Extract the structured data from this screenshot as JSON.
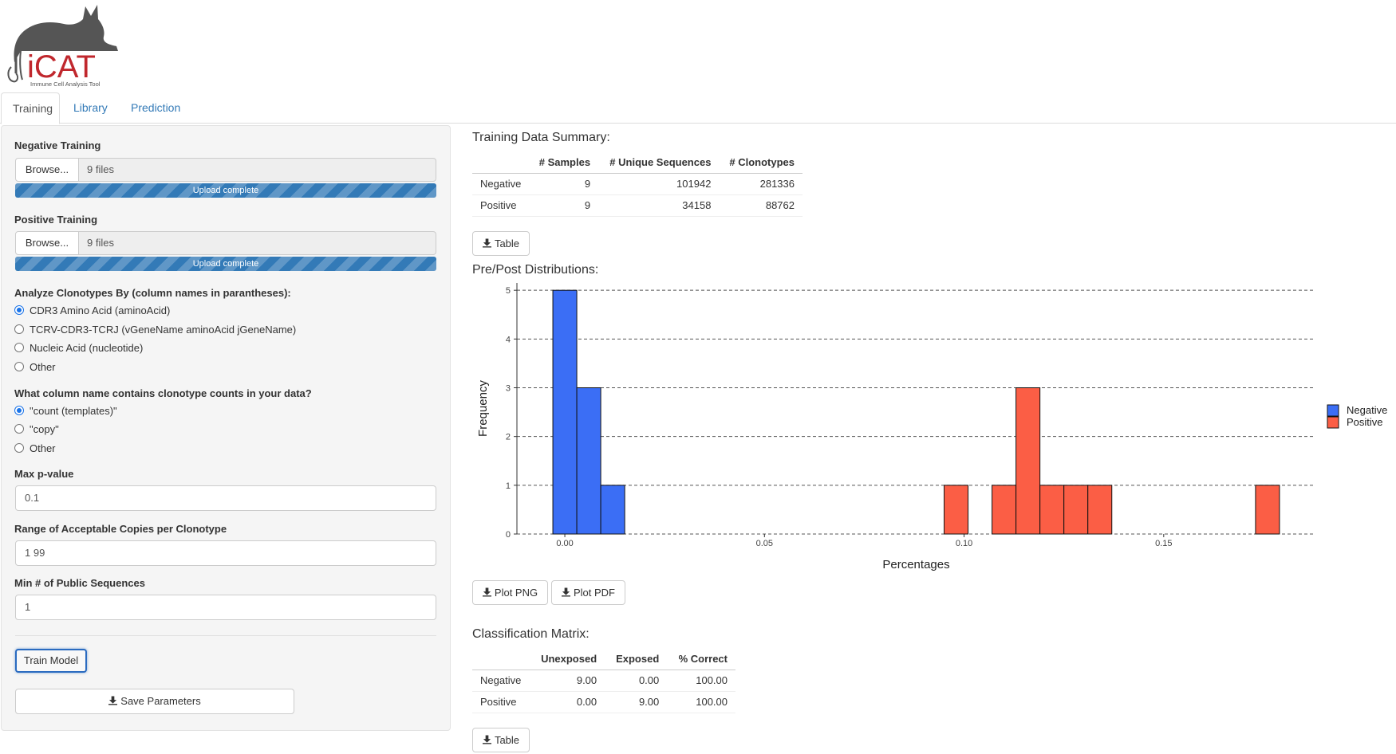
{
  "logo": {
    "text": "iCAT",
    "subtitle": "Immune Cell Analysis Tool"
  },
  "tabs": [
    {
      "label": "Training",
      "active": true
    },
    {
      "label": "Library",
      "active": false
    },
    {
      "label": "Prediction",
      "active": false
    }
  ],
  "sidebar": {
    "negative": {
      "label": "Negative Training",
      "browse": "Browse...",
      "files": "9 files",
      "progress": "Upload complete",
      "progress_value": 1.0
    },
    "positive": {
      "label": "Positive Training",
      "browse": "Browse...",
      "files": "9 files",
      "progress": "Upload complete",
      "progress_value": 1.0
    },
    "analyze": {
      "label": "Analyze Clonotypes By (column names in parantheses):",
      "options": [
        {
          "label": "CDR3 Amino Acid (aminoAcid)",
          "checked": true
        },
        {
          "label": "TCRV-CDR3-TCRJ (vGeneName aminoAcid jGeneName)",
          "checked": false
        },
        {
          "label": "Nucleic Acid (nucleotide)",
          "checked": false
        },
        {
          "label": "Other",
          "checked": false
        }
      ]
    },
    "counts": {
      "label": "What column name contains clonotype counts in your data?",
      "options": [
        {
          "label": "\"count (templates)\"",
          "checked": true
        },
        {
          "label": "\"copy\"",
          "checked": false
        },
        {
          "label": "Other",
          "checked": false
        }
      ]
    },
    "max_p": {
      "label": "Max p-value",
      "value": "0.1"
    },
    "copies": {
      "label": "Range of Acceptable Copies per Clonotype",
      "value": "1 99"
    },
    "public": {
      "label": "Min # of Public Sequences",
      "value": "1"
    },
    "train_button": "Train Model",
    "save_button": "Save Parameters"
  },
  "summary": {
    "title": "Training Data Summary:",
    "headers": [
      "",
      "# Samples",
      "# Unique Sequences",
      "# Clonotypes"
    ],
    "rows": [
      [
        "Negative",
        "9",
        "101942",
        "281336"
      ],
      [
        "Positive",
        "9",
        "34158",
        "88762"
      ]
    ],
    "table_button": "Table"
  },
  "distributions": {
    "title": "Pre/Post Distributions:",
    "plot_png_button": "Plot PNG",
    "plot_pdf_button": "Plot PDF"
  },
  "chart_data": {
    "type": "bar",
    "subtype": "histogram",
    "xlabel": "Percentages",
    "ylabel": "Frequency",
    "xlim": [
      -0.012,
      0.188
    ],
    "ylim": [
      0,
      5.15
    ],
    "xticks": [
      0.0,
      0.05,
      0.1,
      0.15
    ],
    "xtick_labels": [
      "0.00",
      "0.05",
      "0.10",
      "0.15"
    ],
    "yticks": [
      0,
      1,
      2,
      3,
      4,
      5
    ],
    "bin_width": 0.006,
    "grid": "horizontal dashed",
    "legend_position": "right",
    "colors": {
      "Negative": "#3b6ef5",
      "Positive": "#fb5e45"
    },
    "series": [
      {
        "name": "Negative",
        "bins": [
          {
            "x0": -0.003,
            "x1": 0.003,
            "count": 5
          },
          {
            "x0": 0.003,
            "x1": 0.009,
            "count": 3
          },
          {
            "x0": 0.009,
            "x1": 0.015,
            "count": 1
          }
        ]
      },
      {
        "name": "Positive",
        "bins": [
          {
            "x0": 0.095,
            "x1": 0.101,
            "count": 1
          },
          {
            "x0": 0.107,
            "x1": 0.113,
            "count": 1
          },
          {
            "x0": 0.113,
            "x1": 0.119,
            "count": 3
          },
          {
            "x0": 0.119,
            "x1": 0.125,
            "count": 1
          },
          {
            "x0": 0.125,
            "x1": 0.131,
            "count": 1
          },
          {
            "x0": 0.131,
            "x1": 0.137,
            "count": 1
          },
          {
            "x0": 0.173,
            "x1": 0.179,
            "count": 1
          }
        ]
      }
    ]
  },
  "classification": {
    "title": "Classification Matrix:",
    "headers": [
      "",
      "Unexposed",
      "Exposed",
      "% Correct"
    ],
    "rows": [
      [
        "Negative",
        "9.00",
        "0.00",
        "100.00"
      ],
      [
        "Positive",
        "0.00",
        "9.00",
        "100.00"
      ]
    ],
    "table_button": "Table"
  }
}
